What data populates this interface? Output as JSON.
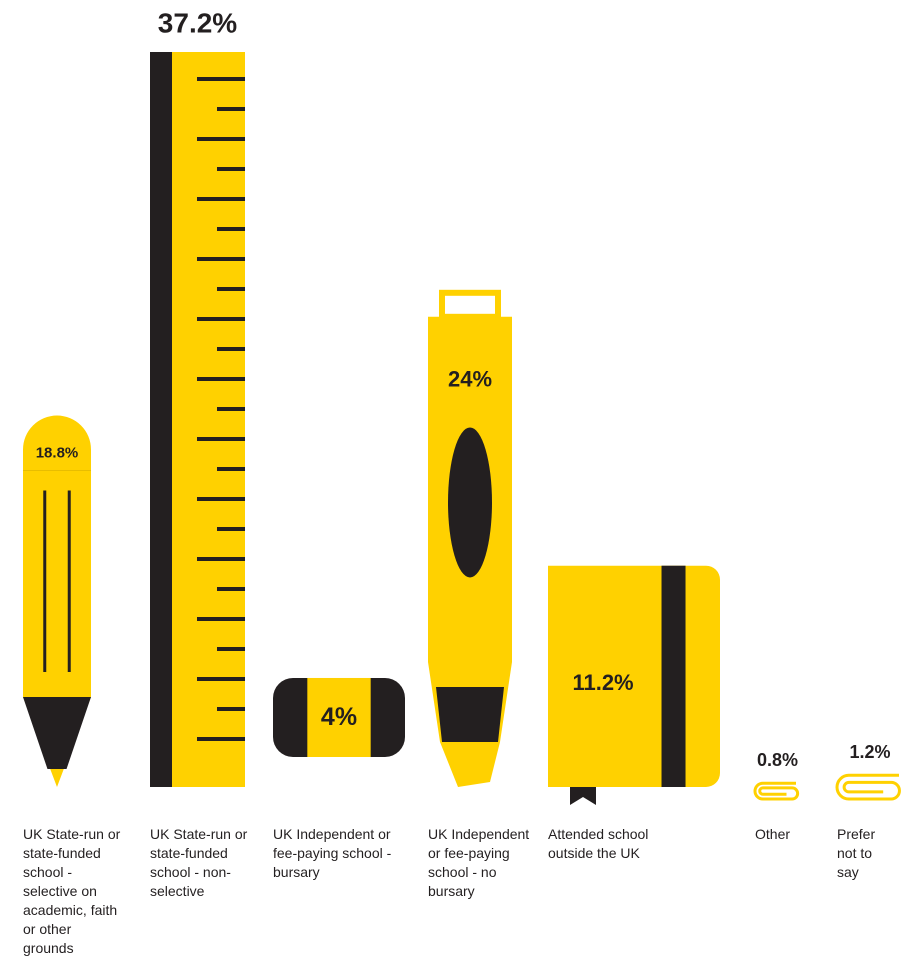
{
  "chart_data": {
    "type": "bar",
    "categories": [
      "UK State-run or state-funded school - selective on academic, faith or other grounds",
      "UK State-run or state-funded school - non-selective",
      "UK Independent or fee-paying school - bursary",
      "UK Independent or fee-paying school - no bursary",
      "Attended school outside the UK",
      "Other",
      "Prefer not to say"
    ],
    "values": [
      18.8,
      37.2,
      4,
      24,
      11.2,
      0.8,
      1.2
    ],
    "value_labels": [
      "18.8%",
      "37.2%",
      "4%",
      "24%",
      "11.2%",
      "0.8%",
      "1.2%"
    ],
    "color": "#FFD100"
  }
}
